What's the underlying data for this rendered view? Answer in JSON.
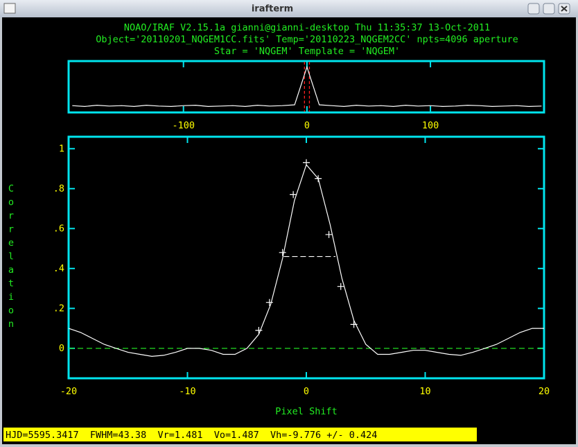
{
  "window": {
    "title": "irafterm"
  },
  "header": {
    "lines": [
      "NOAO/IRAF V2.15.1a gianni@gianni-desktop Thu 11:35:37 13-Oct-2011",
      "Object='20110201_NQGEM1CC.fits' Temp='20110223_NQGEM2CC' npts=4096 aperture",
      "Star = 'NQGEM' Template = 'NQGEM'"
    ]
  },
  "chart_data": [
    {
      "type": "line",
      "x": [
        -190,
        -180,
        -170,
        -160,
        -150,
        -140,
        -130,
        -120,
        -110,
        -100,
        -90,
        -80,
        -70,
        -60,
        -50,
        -40,
        -30,
        -20,
        -10,
        0,
        10,
        20,
        30,
        40,
        50,
        60,
        70,
        80,
        90,
        100,
        110,
        120,
        130,
        140,
        150,
        160,
        170,
        180,
        190
      ],
      "values": [
        0.01,
        -0.01,
        0.02,
        0.0,
        0.01,
        -0.01,
        0.02,
        0.0,
        -0.01,
        0.01,
        0.02,
        -0.01,
        0.0,
        0.01,
        -0.01,
        0.02,
        0.0,
        0.01,
        0.03,
        0.92,
        0.03,
        0.01,
        -0.01,
        0.02,
        0.0,
        0.01,
        -0.01,
        0.02,
        0.0,
        0.01,
        -0.01,
        0.0,
        0.02,
        0.01,
        -0.01,
        0.0,
        0.01,
        -0.01,
        0.0
      ],
      "color": "#ffffff",
      "markers": [
        -2,
        2
      ],
      "marker_color": "#ff2020",
      "xlim": [
        -193,
        192
      ],
      "ylim": [
        -0.15,
        1.06
      ],
      "xticks": [
        -100,
        0,
        100
      ]
    },
    {
      "type": "line",
      "x": [
        -20,
        -19,
        -18,
        -17,
        -16,
        -15,
        -14,
        -13,
        -12,
        -11,
        -10,
        -9,
        -8,
        -7,
        -6,
        -5,
        -4,
        -3,
        -2,
        -1,
        0,
        1,
        2,
        3,
        4,
        5,
        6,
        7,
        8,
        9,
        10,
        11,
        12,
        13,
        14,
        15,
        16,
        17,
        18,
        19,
        20
      ],
      "values": [
        0.1,
        0.08,
        0.05,
        0.02,
        0.0,
        -0.02,
        -0.03,
        -0.04,
        -0.035,
        -0.02,
        0.0,
        0.0,
        -0.01,
        -0.03,
        -0.03,
        0.0,
        0.07,
        0.22,
        0.45,
        0.74,
        0.92,
        0.85,
        0.62,
        0.35,
        0.14,
        0.02,
        -0.03,
        -0.03,
        -0.02,
        -0.01,
        -0.01,
        -0.02,
        -0.03,
        -0.035,
        -0.02,
        0.0,
        0.02,
        0.05,
        0.08,
        0.1,
        0.1
      ],
      "color": "#ffffff",
      "fit_x": [
        -4.0,
        -3.1,
        -2.0,
        -1.1,
        0.0,
        1.0,
        1.9,
        2.9,
        4.0
      ],
      "fit_y": [
        0.09,
        0.23,
        0.48,
        0.77,
        0.93,
        0.85,
        0.57,
        0.31,
        0.12
      ],
      "fwhm_line": {
        "y": 0.46,
        "x": [
          -1.9,
          2.45
        ]
      },
      "zero_line": 0,
      "zero_color": "#22dd22",
      "xlabel": "Pixel Shift",
      "ylabel": "Correlation",
      "xlim": [
        -20,
        20
      ],
      "ylim": [
        -0.15,
        1.06
      ],
      "xticks": [
        -20,
        -10,
        0,
        10,
        20
      ],
      "yticks": [
        0,
        {
          "value": 0.2,
          "label": ".2"
        },
        {
          "value": 0.4,
          "label": ".4"
        },
        {
          "value": 0.6,
          "label": ".6"
        },
        {
          "value": 0.8,
          "label": ".8"
        },
        1
      ]
    }
  ],
  "status": "HJD=5595.3417  FWHM=43.38  Vr=1.481  Vo=1.487  Vh=-9.776 +/- 0.424"
}
